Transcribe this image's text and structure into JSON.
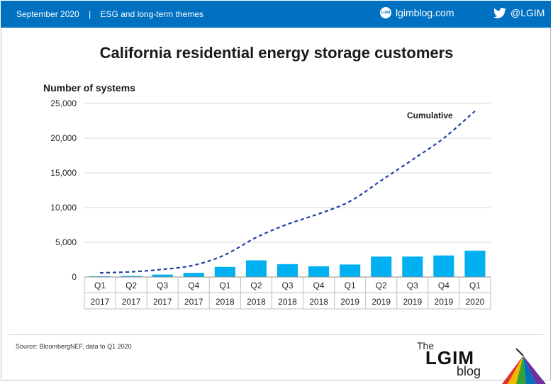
{
  "header": {
    "date": "September 2020",
    "separator": "|",
    "section": "ESG and long-term themes",
    "site": "lgimblog.com",
    "twitter": "@LGIM"
  },
  "footer": {
    "source": "Source: BloombergNEF, data to Q1 2020",
    "brand_the": "The",
    "brand_name": "LGIM",
    "brand_blog": "blog"
  },
  "colors": {
    "header_bg": "#0070c0",
    "bar": "#00b0f0",
    "line": "#1f3fa6"
  },
  "chart_data": {
    "type": "bar",
    "title": "California residential energy storage customers",
    "ylabel": "Number of systems",
    "ylim": [
      0,
      25000
    ],
    "yticks": [
      0,
      5000,
      10000,
      15000,
      20000,
      25000
    ],
    "ytick_labels": [
      "0",
      "5,000",
      "10,000",
      "15,000",
      "20,000",
      "25,000"
    ],
    "categories": [
      {
        "q": "Q1",
        "y": "2017"
      },
      {
        "q": "Q2",
        "y": "2017"
      },
      {
        "q": "Q3",
        "y": "2017"
      },
      {
        "q": "Q4",
        "y": "2017"
      },
      {
        "q": "Q1",
        "y": "2018"
      },
      {
        "q": "Q2",
        "y": "2018"
      },
      {
        "q": "Q3",
        "y": "2018"
      },
      {
        "q": "Q4",
        "y": "2018"
      },
      {
        "q": "Q1",
        "y": "2019"
      },
      {
        "q": "Q2",
        "y": "2019"
      },
      {
        "q": "Q3",
        "y": "2019"
      },
      {
        "q": "Q4",
        "y": "2019"
      },
      {
        "q": "Q1",
        "y": "2020"
      }
    ],
    "series": [
      {
        "type": "bar",
        "values": [
          100,
          150,
          350,
          600,
          1450,
          2400,
          1850,
          1550,
          1800,
          2950,
          2950,
          3100,
          3800
        ]
      },
      {
        "type": "line",
        "name": "Cumulative",
        "style": "dashed",
        "values": [
          600,
          750,
          1100,
          1700,
          3200,
          5700,
          7600,
          9100,
          10900,
          13900,
          16900,
          20000,
          23900
        ]
      }
    ],
    "grid": true
  }
}
